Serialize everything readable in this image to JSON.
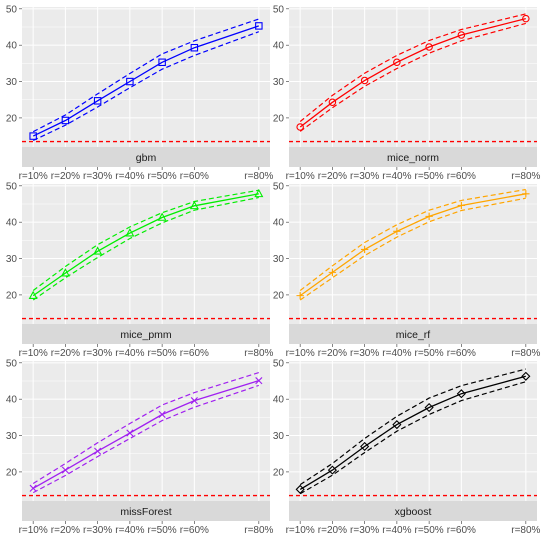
{
  "chart_data": {
    "type": "line",
    "layout": "faceted 3x2",
    "x_categories": [
      "r=10%",
      "r=20%",
      "r=30%",
      "r=40%",
      "r=50%",
      "r=60%",
      "r=80%"
    ],
    "x_positions": [
      10,
      20,
      30,
      40,
      50,
      60,
      80
    ],
    "y_ticks": [
      20,
      30,
      40,
      50
    ],
    "ylim": [
      12,
      50.5
    ],
    "reference_line": {
      "y": 13.5,
      "color": "#ff0000",
      "style": "dashed"
    },
    "grid": true,
    "panel_background": "#ebebeb",
    "strip_background": "#d9d9d9",
    "facets": [
      {
        "name": "gbm",
        "color": "#0000ff",
        "marker": "square",
        "mean": [
          15.0,
          19.3,
          24.7,
          30.0,
          35.3,
          39.3,
          45.3
        ],
        "upper": [
          16.2,
          20.8,
          26.6,
          32.2,
          37.6,
          41.2,
          47.2
        ],
        "lower": [
          13.8,
          18.0,
          23.0,
          28.3,
          33.4,
          37.2,
          43.7
        ]
      },
      {
        "name": "mice_norm",
        "color": "#ff0000",
        "marker": "circle",
        "mean": [
          17.5,
          24.3,
          30.3,
          35.3,
          39.5,
          42.8,
          47.3
        ],
        "upper": [
          19.0,
          26.2,
          32.3,
          37.2,
          41.3,
          44.3,
          48.6
        ],
        "lower": [
          16.3,
          22.8,
          28.7,
          33.6,
          37.8,
          41.2,
          46.0
        ]
      },
      {
        "name": "mice_pmm",
        "color": "#00ee00",
        "marker": "triangle",
        "mean": [
          19.8,
          26.0,
          32.0,
          37.0,
          41.3,
          44.5,
          47.8
        ],
        "upper": [
          21.2,
          27.8,
          33.8,
          38.7,
          42.6,
          45.7,
          48.8
        ],
        "lower": [
          18.6,
          24.7,
          30.3,
          35.5,
          39.8,
          43.3,
          46.8
        ]
      },
      {
        "name": "mice_rf",
        "color": "#ffa500",
        "marker": "plus",
        "mean": [
          19.8,
          26.2,
          32.5,
          37.5,
          41.6,
          44.6,
          47.8
        ],
        "upper": [
          21.2,
          28.0,
          34.4,
          39.3,
          43.3,
          46.0,
          49.0
        ],
        "lower": [
          18.6,
          24.7,
          30.8,
          35.9,
          40.1,
          43.2,
          46.6
        ]
      },
      {
        "name": "missForest",
        "color": "#a020f0",
        "marker": "cross",
        "mean": [
          15.5,
          20.5,
          25.7,
          30.7,
          35.8,
          39.6,
          45.1
        ],
        "upper": [
          16.8,
          22.3,
          28.0,
          33.3,
          38.4,
          41.8,
          47.3
        ],
        "lower": [
          14.3,
          19.0,
          24.2,
          29.2,
          34.1,
          37.8,
          43.8
        ]
      },
      {
        "name": "xgboost",
        "color": "#000000",
        "marker": "diamond",
        "mean": [
          15.2,
          20.5,
          27.0,
          33.0,
          37.7,
          41.5,
          46.3
        ],
        "upper": [
          16.5,
          22.3,
          29.2,
          35.3,
          40.3,
          43.7,
          48.3
        ],
        "lower": [
          14.0,
          19.1,
          25.3,
          31.2,
          35.8,
          39.6,
          44.8
        ]
      }
    ]
  }
}
